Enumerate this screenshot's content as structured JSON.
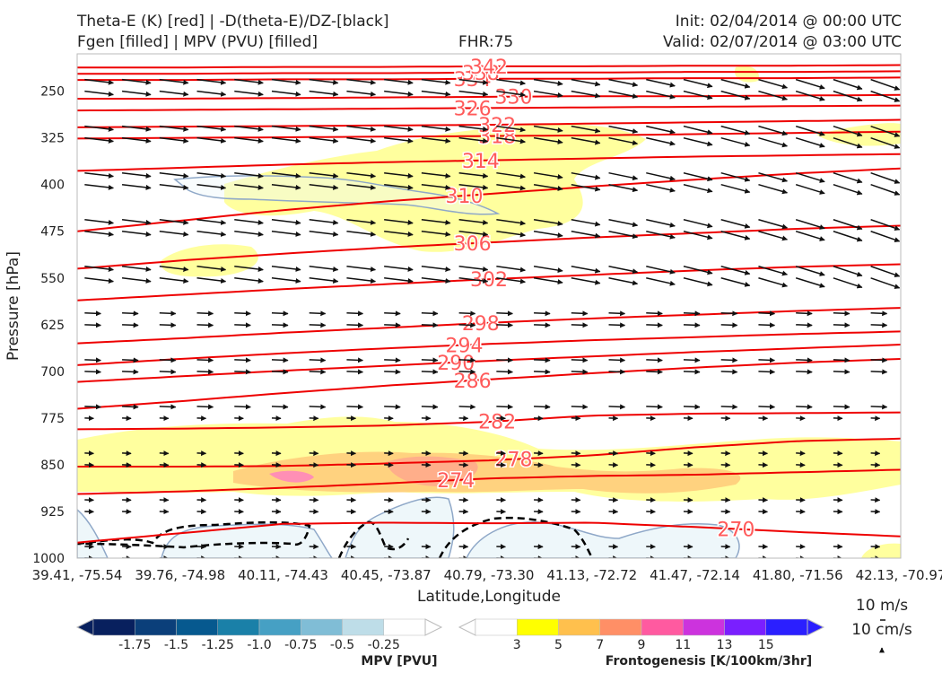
{
  "header": {
    "title_left_1": "Theta-E (K) [red] | -D(theta-E)/DZ-[black]",
    "title_left_2": "Fgen [filled] | MPV (PVU) [filled]",
    "title_center": "FHR:75",
    "title_right_1": "Init: 02/04/2014 @ 00:00 UTC",
    "title_right_2": "Valid: 02/07/2014 @ 03:00 UTC"
  },
  "chart_data": {
    "type": "cross-section",
    "xlabel": "Latitude,Longitude",
    "ylabel": "Pressure [hPa]",
    "x_ticks": [
      "39.41, -75.54",
      "39.76, -74.98",
      "40.11, -74.43",
      "40.45, -73.87",
      "40.79, -73.30",
      "41.13, -72.72",
      "41.47, -72.14",
      "41.80, -71.56",
      "42.13, -70.97"
    ],
    "y_ticks": [
      250,
      325,
      400,
      475,
      550,
      625,
      700,
      775,
      850,
      925,
      1000
    ],
    "ylim": [
      1000,
      190
    ],
    "theta_e_contours": [
      {
        "label": "270",
        "p": [
          975,
          960,
          945,
          943,
          944,
          943,
          950,
          958,
          965
        ],
        "label_x": 0.8
      },
      {
        "label": "274",
        "p": [
          897,
          893,
          887,
          880,
          872,
          868,
          866,
          862,
          858
        ],
        "label_x": 0.46
      },
      {
        "label": "278",
        "p": [
          853,
          853,
          852,
          848,
          843,
          835,
          822,
          812,
          808
        ],
        "label_x": 0.53
      },
      {
        "label": "282",
        "p": [
          793,
          792,
          790,
          787,
          781,
          771,
          768,
          767,
          766
        ],
        "label_x": 0.51
      },
      {
        "label": "286",
        "p": [
          760,
          748,
          735,
          723,
          713,
          703,
          694,
          686,
          680
        ],
        "label_x": 0.48
      },
      {
        "label": "290",
        "p": [
          717,
          708,
          699,
          691,
          683,
          676,
          669,
          663,
          657
        ],
        "label_x": 0.46
      },
      {
        "label": "294",
        "p": [
          690,
          680,
          671,
          663,
          656,
          650,
          645,
          640,
          636
        ],
        "label_x": 0.47
      },
      {
        "label": "298",
        "p": [
          655,
          647,
          638,
          630,
          622,
          615,
          609,
          603,
          598
        ],
        "label_x": 0.49
      },
      {
        "label": "302",
        "p": [
          586,
          577,
          568,
          560,
          552,
          545,
          538,
          532,
          528
        ],
        "label_x": 0.5
      },
      {
        "label": "306",
        "p": [
          535,
          522,
          511,
          501,
          493,
          485,
          478,
          471,
          466
        ],
        "label_x": 0.48
      },
      {
        "label": "310",
        "p": [
          475,
          458,
          441,
          427,
          415,
          403,
          392,
          382,
          374
        ],
        "label_x": 0.47
      },
      {
        "label": "314",
        "p": [
          378,
          373,
          368,
          364,
          361,
          358,
          355,
          353,
          351
        ],
        "label_x": 0.49
      },
      {
        "label": "318",
        "p": [
          326,
          325,
          324,
          323,
          322,
          321,
          319,
          317,
          315
        ],
        "label_x": 0.51
      },
      {
        "label": "322",
        "p": [
          308,
          307,
          306,
          305,
          304,
          302,
          300,
          298,
          296
        ],
        "label_x": 0.51
      },
      {
        "label": "326",
        "p": [
          281,
          280,
          279,
          278,
          277,
          276,
          275,
          274,
          273
        ],
        "label_x": 0.48
      },
      {
        "label": "330",
        "p": [
          262,
          262,
          261,
          260,
          259,
          258,
          258,
          257,
          256
        ],
        "label_x": 0.53
      },
      {
        "label": "334",
        "p": [
          232,
          232,
          231,
          231,
          230,
          230,
          229,
          229,
          228
        ],
        "label_x": 0.48
      },
      {
        "label": "338",
        "p": [
          222,
          222,
          221,
          221,
          220,
          220,
          219,
          219,
          218
        ],
        "label_x": 0.49
      },
      {
        "label": "342",
        "p": [
          212,
          212,
          211,
          211,
          210,
          210,
          209,
          209,
          208
        ],
        "label_x": 0.5
      }
    ],
    "fgen_colorbar": {
      "label": "Frontogenesis [K/100km/3hr]",
      "ticks": [
        "3",
        "5",
        "7",
        "9",
        "11",
        "13",
        "15"
      ],
      "colors": [
        "#ffff00",
        "#ffc04d",
        "#ff8f66",
        "#ff5aa0",
        "#cc33dd",
        "#7a1fff",
        "#2b1fff"
      ]
    },
    "mpv_colorbar": {
      "label": "MPV [PVU]",
      "ticks": [
        "-1.75",
        "-1.5",
        "-1.25",
        "-1.0",
        "-0.75",
        "-0.5",
        "-0.25"
      ],
      "colors": [
        "#08205e",
        "#0b3f7a",
        "#06598f",
        "#1a80a8",
        "#46a0c4",
        "#80bdd6",
        "#bedde8"
      ]
    },
    "reference_vector": {
      "label_top": "10 m/s",
      "label_bottom": "10 cm/s"
    }
  }
}
